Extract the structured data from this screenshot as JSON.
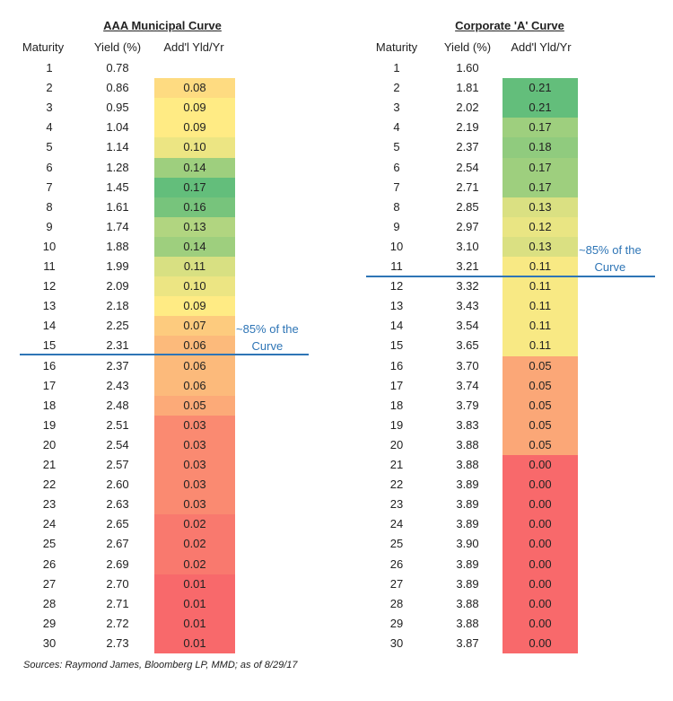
{
  "chart_data": [
    {
      "type": "table",
      "title": "AAA Municipal Curve",
      "columns": [
        "Maturity",
        "Yield (%)",
        "Add'l Yld/Yr"
      ],
      "maturity": [
        1,
        2,
        3,
        4,
        5,
        6,
        7,
        8,
        9,
        10,
        11,
        12,
        13,
        14,
        15,
        16,
        17,
        18,
        19,
        20,
        21,
        22,
        23,
        24,
        25,
        26,
        27,
        28,
        29,
        30
      ],
      "yield": [
        "0.78",
        "0.86",
        "0.95",
        "1.04",
        "1.14",
        "1.28",
        "1.45",
        "1.61",
        "1.74",
        "1.88",
        "1.99",
        "2.09",
        "2.18",
        "2.25",
        "2.31",
        "2.37",
        "2.43",
        "2.48",
        "2.51",
        "2.54",
        "2.57",
        "2.60",
        "2.63",
        "2.65",
        "2.67",
        "2.69",
        "2.70",
        "2.71",
        "2.72",
        "2.73"
      ],
      "addl": [
        null,
        "0.08",
        "0.09",
        "0.09",
        "0.10",
        "0.14",
        "0.17",
        "0.16",
        "0.13",
        "0.14",
        "0.11",
        "0.10",
        "0.09",
        "0.07",
        "0.06",
        "0.06",
        "0.06",
        "0.05",
        "0.03",
        "0.03",
        "0.03",
        "0.03",
        "0.03",
        "0.02",
        "0.02",
        "0.02",
        "0.01",
        "0.01",
        "0.01",
        "0.01"
      ],
      "annotation": {
        "text_line1": "~85% of the",
        "text_line2": "Curve",
        "after_maturity": 15
      }
    },
    {
      "type": "table",
      "title": "Corporate 'A' Curve",
      "columns": [
        "Maturity",
        "Yield (%)",
        "Add'l Yld/Yr"
      ],
      "maturity": [
        1,
        2,
        3,
        4,
        5,
        6,
        7,
        8,
        9,
        10,
        11,
        12,
        13,
        14,
        15,
        16,
        17,
        18,
        19,
        20,
        21,
        22,
        23,
        24,
        25,
        26,
        27,
        28,
        29,
        30
      ],
      "yield": [
        "1.60",
        "1.81",
        "2.02",
        "2.19",
        "2.37",
        "2.54",
        "2.71",
        "2.85",
        "2.97",
        "3.10",
        "3.21",
        "3.32",
        "3.43",
        "3.54",
        "3.65",
        "3.70",
        "3.74",
        "3.79",
        "3.83",
        "3.88",
        "3.88",
        "3.89",
        "3.89",
        "3.89",
        "3.90",
        "3.89",
        "3.89",
        "3.88",
        "3.88",
        "3.87"
      ],
      "addl": [
        null,
        "0.21",
        "0.21",
        "0.17",
        "0.18",
        "0.17",
        "0.17",
        "0.13",
        "0.12",
        "0.13",
        "0.11",
        "0.11",
        "0.11",
        "0.11",
        "0.11",
        "0.05",
        "0.05",
        "0.05",
        "0.05",
        "0.05",
        "0.00",
        "0.00",
        "0.00",
        "0.00",
        "0.00",
        "0.00",
        "0.00",
        "0.00",
        "0.00",
        "0.00"
      ],
      "annotation": {
        "text_line1": "~85% of the",
        "text_line2": "Curve",
        "after_maturity": 11
      }
    }
  ],
  "source": "Sources: Raymond James, Bloomberg LP, MMD; as of 8/29/17",
  "colors": {
    "divider": "#2e75b6",
    "annotation": "#2e75b6",
    "scale": [
      "#f8696b",
      "#ffeb84",
      "#63be7b"
    ]
  }
}
